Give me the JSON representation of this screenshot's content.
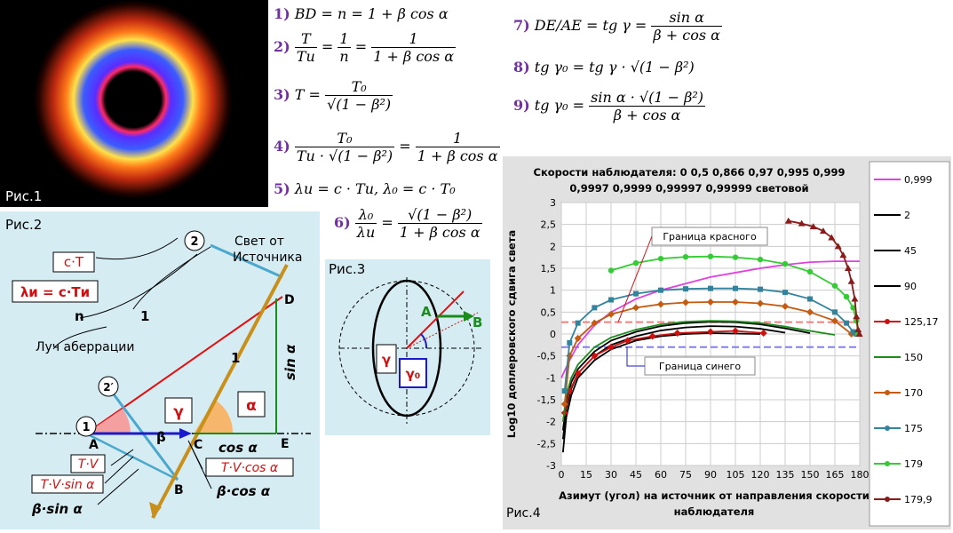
{
  "fig1": {
    "label": "Рис.1"
  },
  "fig2": {
    "label": "Рис.2",
    "light_line1": "Свет от",
    "light_line2": "Источника",
    "ray_label": "Луч аберрации",
    "box_cT": "c·T",
    "box_lambda": "λи = c·Tи",
    "box_TV": "T·V",
    "box_TVsin": "T·V·sin α",
    "box_TVcos": "T·V·cos α",
    "beta_sin": "β·sin α",
    "beta_cos": "β·cos α",
    "n": "n",
    "one_a": "1",
    "one_b": "1",
    "circle1": "1",
    "circle2": "2",
    "circle2p": "2′",
    "gamma": "γ",
    "alpha": "α",
    "beta": "β",
    "cos_alpha": "cos α",
    "sin_alpha": "sin α",
    "A": "A",
    "B": "B",
    "C": "C",
    "D": "D",
    "E": "E"
  },
  "fig3": {
    "label": "Рис.3",
    "A": "A",
    "B": "B",
    "gamma": "γ",
    "gamma0": "γ₀"
  },
  "formulas": {
    "n1": "1)",
    "f1": "BD = n = 1 + β cos α",
    "n2": "2)",
    "f2_l1": "T",
    "f2_l2": "Tи",
    "f2_m1": "1",
    "f2_m2": "n",
    "f2_r1": "1",
    "f2_r2": "1 + β cos α",
    "n3": "3)",
    "f3_l": "T =",
    "f3_n": "T₀",
    "f3_d": "√(1 − β²)",
    "n4": "4)",
    "f4_n": "T₀",
    "f4_d": "Tи · √(1 − β²)",
    "f4_rn": "1",
    "f4_rd": "1 + β cos α",
    "n5": "5)",
    "f5": "λи = c · Tи,      λ₀ = c · T₀",
    "n6": "6)",
    "f6_n": "λ₀",
    "f6_d": "λи",
    "f6_rn": "√(1 − β²)",
    "f6_rd": "1 + β cos α",
    "n7": "7)",
    "f7_l": "DE/AE = tg γ =",
    "f7_n": "sin α",
    "f7_d": "β + cos α",
    "n8": "8)",
    "f8": "tg γ₀ = tg γ · √(1 − β²)",
    "n9": "9)",
    "f9_l": "tg γ₀ =",
    "f9_n": "sin α · √(1 − β²)",
    "f9_d": "β + cos α"
  },
  "chart_data": {
    "type": "line",
    "title": "Скорости наблюдателя:  0   0,5   0,866 0,97 0,995 0,999",
    "title2": "0,9997 0,9999  0,99997 0,99999 световой",
    "xlabel": "Азимут (угол) на источник от направления скорости",
    "xlabel2": "наблюдателя",
    "ylabel": "Log10 доплеровского  сдвига  света",
    "xlim": [
      0,
      180
    ],
    "ylim": [
      -3,
      3
    ],
    "xticks": [
      "0",
      "15",
      "30",
      "45",
      "60",
      "75",
      "90",
      "105",
      "120",
      "135",
      "150",
      "165",
      "180"
    ],
    "yticks": [
      "-3",
      "-2,5",
      "-2",
      "-1,5",
      "-1",
      "-0,5",
      "0",
      "0,5",
      "1",
      "1,5",
      "2",
      "2,5",
      "3"
    ],
    "annotations": {
      "red_border": "Граница красного",
      "blue_border": "Граница синего"
    },
    "red_border_y": 0.27,
    "blue_border_y": -0.3,
    "figure_label": "Рис.4",
    "series": [
      {
        "name": "0,999",
        "color": "#e040e0",
        "marker": "none",
        "x": [
          0,
          5,
          10,
          20,
          30,
          45,
          60,
          75,
          90,
          105,
          120,
          135,
          150,
          165,
          180
        ],
        "y": [
          -1.0,
          -0.6,
          -0.25,
          0.2,
          0.5,
          0.8,
          1.0,
          1.15,
          1.3,
          1.4,
          1.5,
          1.58,
          1.64,
          1.66,
          1.66
        ]
      },
      {
        "name": "2",
        "color": "#000000",
        "marker": "none",
        "x": [
          1,
          3,
          6,
          10,
          20,
          30,
          45,
          60,
          75,
          90,
          105,
          120
        ],
        "y": [
          -2.7,
          -1.9,
          -1.4,
          -1.0,
          -0.6,
          -0.35,
          -0.15,
          -0.05,
          0.0,
          0.02,
          0.01,
          0.0
        ]
      },
      {
        "name": "45",
        "color": "#000000",
        "marker": "none",
        "x": [
          1,
          3,
          6,
          10,
          20,
          30,
          45,
          60,
          75,
          90,
          105,
          120,
          135
        ],
        "y": [
          -2.4,
          -1.7,
          -1.25,
          -0.9,
          -0.5,
          -0.25,
          -0.05,
          0.08,
          0.15,
          0.18,
          0.17,
          0.12,
          0.03
        ]
      },
      {
        "name": "90",
        "color": "#000000",
        "marker": "none",
        "x": [
          1,
          3,
          6,
          10,
          20,
          30,
          45,
          60,
          75,
          90,
          105,
          120,
          135,
          150
        ],
        "y": [
          -2.2,
          -1.55,
          -1.1,
          -0.8,
          -0.4,
          -0.15,
          0.05,
          0.18,
          0.25,
          0.28,
          0.27,
          0.22,
          0.13,
          0.02
        ]
      },
      {
        "name": "125,17",
        "color": "#d01010",
        "marker": "diamond",
        "x": [
          2,
          5,
          10,
          20,
          30,
          40,
          55,
          70,
          90,
          105,
          122
        ],
        "y": [
          -1.8,
          -1.3,
          -0.9,
          -0.5,
          -0.3,
          -0.15,
          -0.05,
          0.02,
          0.05,
          0.07,
          0.02
        ]
      },
      {
        "name": "150",
        "color": "#1a8c1a",
        "marker": "none",
        "x": [
          1,
          3,
          6,
          10,
          20,
          30,
          45,
          60,
          75,
          90,
          105,
          120,
          135,
          150,
          165
        ],
        "y": [
          -2.0,
          -1.4,
          -1.0,
          -0.7,
          -0.3,
          -0.08,
          0.1,
          0.22,
          0.28,
          0.3,
          0.29,
          0.25,
          0.17,
          0.07,
          -0.02
        ]
      },
      {
        "name": "170",
        "color": "#c55a11",
        "marker": "diamond",
        "x": [
          2,
          5,
          10,
          20,
          30,
          45,
          60,
          75,
          90,
          105,
          120,
          135,
          150,
          165,
          175
        ],
        "y": [
          -1.6,
          -0.5,
          -0.1,
          0.25,
          0.45,
          0.6,
          0.68,
          0.72,
          0.73,
          0.73,
          0.7,
          0.63,
          0.5,
          0.3,
          0.0
        ]
      },
      {
        "name": "175",
        "color": "#31849b",
        "marker": "square",
        "x": [
          2,
          5,
          10,
          20,
          30,
          45,
          60,
          75,
          90,
          105,
          120,
          135,
          150,
          165,
          172,
          176,
          178
        ],
        "y": [
          -1.3,
          -0.2,
          0.25,
          0.6,
          0.78,
          0.92,
          1.0,
          1.03,
          1.04,
          1.04,
          1.02,
          0.95,
          0.8,
          0.5,
          0.25,
          0.05,
          0.0
        ]
      },
      {
        "name": "179",
        "color": "#33cc33",
        "marker": "circle",
        "x": [
          30,
          45,
          60,
          75,
          90,
          105,
          120,
          135,
          150,
          165,
          172,
          176,
          178,
          179
        ],
        "y": [
          1.45,
          1.62,
          1.72,
          1.76,
          1.77,
          1.75,
          1.7,
          1.6,
          1.42,
          1.1,
          0.85,
          0.6,
          0.3,
          0.0
        ]
      },
      {
        "name": "179,9",
        "color": "#8b1a1a",
        "marker": "triangle",
        "x": [
          137,
          145,
          152,
          158,
          163,
          167,
          170,
          173,
          175,
          177,
          178,
          179,
          179.8
        ],
        "y": [
          2.58,
          2.52,
          2.45,
          2.35,
          2.2,
          2.0,
          1.8,
          1.5,
          1.2,
          0.8,
          0.4,
          0.1,
          0.0
        ]
      }
    ]
  }
}
